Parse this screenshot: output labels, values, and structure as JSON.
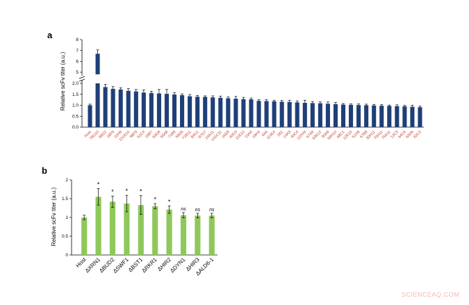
{
  "watermark": "SCIENCEAQ.COM",
  "colors": {
    "bar_a": "#1f3f78",
    "bar_b": "#8fc85a",
    "label_a": "#c0392b"
  },
  "chart_data": [
    {
      "panel_label": "a",
      "type": "bar",
      "ylabel": "Relative scFv titer (a.u.)",
      "ylim": [
        0,
        8
      ],
      "axis_break": [
        2.2,
        5.0
      ],
      "lower_ticks": [
        "0.0",
        "0.5",
        "1.0",
        "1.5",
        "2.0"
      ],
      "upper_ticks": [
        "5",
        "6",
        "7",
        "8"
      ],
      "categories": [
        "Host",
        "79G10",
        "66G2",
        "18F9",
        "22H9",
        "121E10",
        "98F9",
        "51C4",
        "19B7",
        "63G8",
        "93A8",
        "71B8",
        "59D5",
        "71B11",
        "84G1",
        "97G7",
        "16A11",
        "141C11",
        "16E8",
        "40G3",
        "21E10",
        "15A4",
        "19H4",
        "4A6",
        "115E4",
        "1B1",
        "14A3",
        "40C4",
        "122H3",
        "67A9",
        "63E12",
        "35A9",
        "59H10",
        "68C1",
        "12E10",
        "51H8",
        "67B8",
        "30H11",
        "70H11",
        "75A11",
        "12C3",
        "64C6",
        "63D6",
        "82C2"
      ],
      "values": [
        1.0,
        6.7,
        1.83,
        1.75,
        1.72,
        1.66,
        1.63,
        1.58,
        1.56,
        1.54,
        1.52,
        1.49,
        1.46,
        1.41,
        1.39,
        1.38,
        1.36,
        1.34,
        1.32,
        1.3,
        1.28,
        1.27,
        1.2,
        1.19,
        1.18,
        1.16,
        1.15,
        1.13,
        1.11,
        1.1,
        1.09,
        1.07,
        1.05,
        1.03,
        1.02,
        1.01,
        1.0,
        0.99,
        0.98,
        0.97,
        0.96,
        0.95,
        0.93,
        0.91
      ],
      "errors": [
        0.05,
        0.35,
        0.12,
        0.1,
        0.08,
        0.1,
        0.09,
        0.12,
        0.08,
        0.18,
        0.2,
        0.08,
        0.06,
        0.08,
        0.06,
        0.05,
        0.07,
        0.08,
        0.06,
        0.1,
        0.08,
        0.06,
        0.05,
        0.06,
        0.05,
        0.06,
        0.08,
        0.07,
        0.12,
        0.07,
        0.06,
        0.08,
        0.08,
        0.05,
        0.04,
        0.05,
        0.05,
        0.05,
        0.05,
        0.04,
        0.06,
        0.05,
        0.07,
        0.05
      ]
    },
    {
      "panel_label": "b",
      "type": "bar",
      "ylabel": "Relative scFv titer (a.u.)",
      "ylim": [
        0,
        2
      ],
      "yticks": [
        "0",
        "0.5",
        "1",
        "1.5",
        "2"
      ],
      "categories": [
        "Host",
        "ΔXRN1",
        "ΔBUD2",
        "ΔSWF1",
        "ΔBST1",
        "ΔRKR1",
        "ΔHIR2",
        "ΔDYN1",
        "ΔHIR3",
        "ΔALD6-1"
      ],
      "values": [
        1.0,
        1.55,
        1.42,
        1.37,
        1.33,
        1.3,
        1.21,
        1.06,
        1.05,
        1.05
      ],
      "errors": [
        0.06,
        0.22,
        0.15,
        0.22,
        0.25,
        0.07,
        0.1,
        0.07,
        0.06,
        0.06
      ],
      "significance": [
        "",
        "*",
        "*",
        "*",
        "*",
        "*",
        "*",
        "ns",
        "ns",
        "ns"
      ]
    }
  ]
}
